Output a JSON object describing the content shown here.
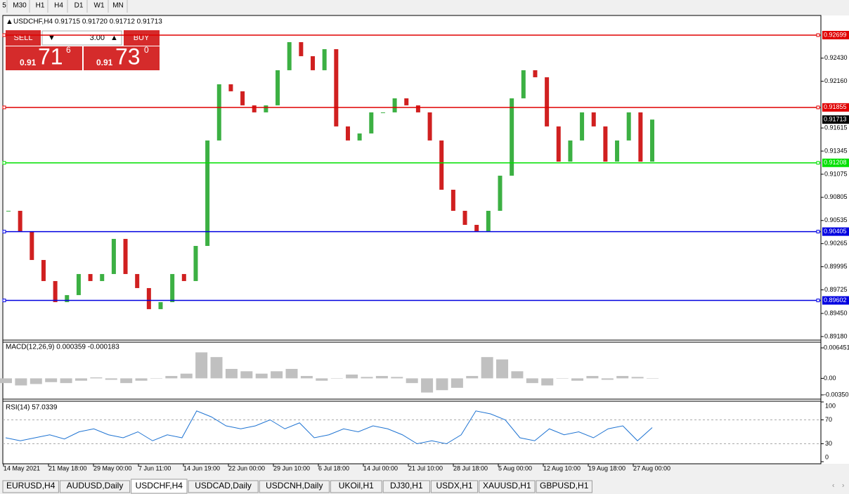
{
  "toolbar": [
    "5",
    "M30",
    "H1",
    "H4",
    "D1",
    "W1",
    "MN"
  ],
  "symbol_title": "USDCHF,H4  0.91715 0.91720 0.91712 0.91713",
  "trade_panel": {
    "sell": "SELL",
    "volume": "3.00",
    "buy": "BUY",
    "sell_big": "0.91",
    "sell_pips": "71",
    "sell_frac": "6",
    "buy_big": "0.91",
    "buy_pips": "73",
    "buy_frac": "0"
  },
  "price_chart": {
    "ylim": [
      0.89155,
      0.92912
    ],
    "yticks": [
      {
        "value": 0.9243,
        "label": "0.92430"
      },
      {
        "value": 0.9216,
        "label": "0.92160"
      },
      {
        "value": 0.91615,
        "label": "0.91615"
      },
      {
        "value": 0.91345,
        "label": "0.91345"
      },
      {
        "value": 0.91075,
        "label": "0.91075"
      },
      {
        "value": 0.90805,
        "label": "0.90805"
      },
      {
        "value": 0.90535,
        "label": "0.90535"
      },
      {
        "value": 0.90265,
        "label": "0.90265"
      },
      {
        "value": 0.89995,
        "label": "0.89995"
      },
      {
        "value": 0.89725,
        "label": "0.89725"
      },
      {
        "value": 0.8945,
        "label": "0.89450"
      },
      {
        "value": 0.8918,
        "label": "0.89180"
      }
    ],
    "levels": [
      {
        "value": 0.92699,
        "label": "0.92699",
        "color": "#e00000"
      },
      {
        "value": 0.91855,
        "label": "0.91855",
        "color": "#e00000"
      },
      {
        "value": 0.91208,
        "label": "0.91208",
        "color": "#00e000"
      },
      {
        "value": 0.90405,
        "label": "0.90405",
        "color": "#0000e0"
      },
      {
        "value": 0.89602,
        "label": "0.89602",
        "color": "#0000e0"
      }
    ],
    "current": {
      "value": 0.91713,
      "label": "0.91713"
    },
    "closes": [
      0.90648,
      0.90402,
      0.90074,
      0.89828,
      0.89582,
      0.89664,
      0.8991,
      0.89828,
      0.8991,
      0.9032,
      0.8991,
      0.89746,
      0.895,
      0.89582,
      0.8991,
      0.89828,
      0.90238,
      0.91469,
      0.92125,
      0.92043,
      0.91879,
      0.91797,
      0.91879,
      0.92289,
      0.92617,
      0.92453,
      0.92289,
      0.92535,
      0.91633,
      0.91469,
      0.91551,
      0.91797,
      0.91797,
      0.91961,
      0.91879,
      0.91797,
      0.91469,
      0.90894,
      0.90648,
      0.90484,
      0.90402,
      0.90648,
      0.91058,
      0.91961,
      0.92289,
      0.92207,
      0.91633,
      0.91222,
      0.91469,
      0.91797,
      0.91633,
      0.91222,
      0.91469,
      0.91797,
      0.91222,
      0.91713
    ]
  },
  "macd": {
    "title": "MACD(12,26,9) 0.000359 -0.000183",
    "ylim": [
      -0.0041,
      0.0072
    ],
    "yticks": [
      {
        "value": 0.006451,
        "label": "0.006451"
      },
      {
        "value": 0,
        "label": "0.00"
      },
      {
        "value": -0.0035,
        "label": "-0.00350"
      }
    ],
    "values": [
      -0.001,
      -0.0015,
      -0.0012,
      -0.0008,
      -0.001,
      -0.0005,
      0.0002,
      -0.0003,
      -0.001,
      -0.0005,
      0,
      0.0005,
      0.001,
      0.0055,
      0.0045,
      0.002,
      0.0015,
      0.001,
      0.0015,
      0.002,
      0.0005,
      -0.0005,
      0,
      0.0008,
      0.0003,
      0.0005,
      0.0003,
      -0.001,
      -0.003,
      -0.0025,
      -0.002,
      0.0005,
      0.0045,
      0.004,
      0.0015,
      -0.001,
      -0.0015,
      0,
      -0.0005,
      0.0005,
      -0.0003,
      0.0005,
      0.0003,
      0
    ]
  },
  "rsi": {
    "title": "RSI(14) 57.0339",
    "ylim": [
      0,
      100
    ],
    "yticks": [
      100,
      70,
      30,
      0
    ],
    "levels": [
      70,
      30
    ],
    "values": [
      40,
      35,
      40,
      45,
      38,
      50,
      55,
      45,
      40,
      50,
      35,
      45,
      40,
      85,
      75,
      60,
      55,
      60,
      70,
      55,
      65,
      40,
      45,
      55,
      50,
      60,
      55,
      45,
      30,
      35,
      30,
      45,
      85,
      80,
      70,
      40,
      35,
      55,
      45,
      50,
      40,
      55,
      60,
      35,
      57
    ]
  },
  "time_labels": [
    "14 May 2021",
    "21 May 18:00",
    "29 May 00:00",
    "7 Jun 11:00",
    "14 Jun 19:00",
    "22 Jun 00:00",
    "29 Jun 10:00",
    "6 Jul 18:00",
    "14 Jul 00:00",
    "21 Jul 10:00",
    "28 Jul 18:00",
    "5 Aug 00:00",
    "12 Aug 10:00",
    "19 Aug 18:00",
    "27 Aug 00:00"
  ],
  "tabs": [
    "EURUSD,H4",
    "AUDUSD,Daily",
    "USDCHF,H4",
    "USDCAD,Daily",
    "USDCNH,Daily",
    "UKOil,H1",
    "DJ30,H1",
    "USDX,H1",
    "XAUUSD,H1",
    "GBPUSD,H1"
  ],
  "active_tab": 2
}
